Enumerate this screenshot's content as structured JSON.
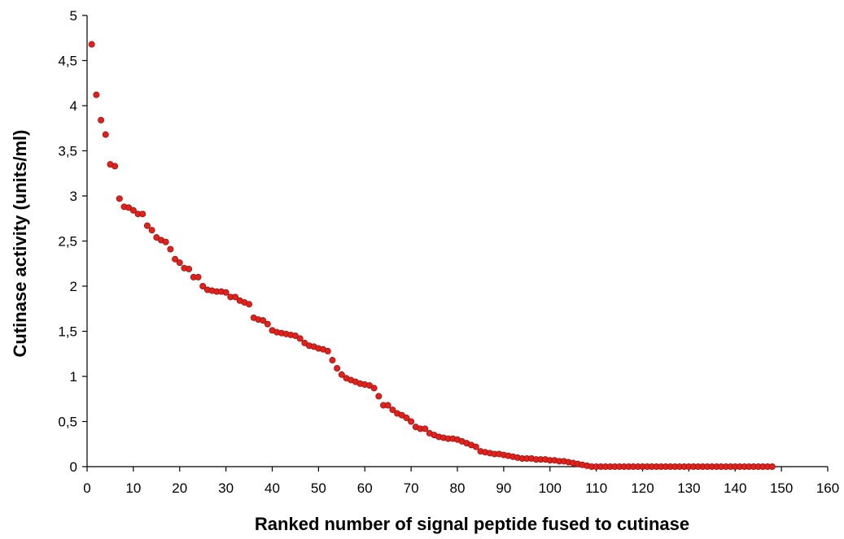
{
  "chart_data": {
    "type": "scatter",
    "title": "",
    "xlabel": "Ranked number of signal peptide fused to cutinase",
    "ylabel": "Cutinase activity (units/ml)",
    "xlim": [
      0,
      160
    ],
    "ylim": [
      0,
      5
    ],
    "x_ticks": [
      "0",
      "10",
      "20",
      "30",
      "40",
      "50",
      "60",
      "70",
      "80",
      "90",
      "100",
      "110",
      "120",
      "130",
      "140",
      "150",
      "160"
    ],
    "y_ticks": [
      "0",
      "0,5",
      "1",
      "1,5",
      "2",
      "2,5",
      "3",
      "3,5",
      "4",
      "4,5",
      "5"
    ],
    "grid": false,
    "legend": "none",
    "marker_color": "#e0221c",
    "marker_edge_color": "#a01010",
    "series": [
      {
        "x": [
          1,
          2,
          3,
          4,
          5,
          6,
          7,
          8,
          9,
          10,
          11,
          12,
          13,
          14,
          15,
          16,
          17,
          18,
          19,
          20,
          21,
          22,
          23,
          24,
          25,
          26,
          27,
          28,
          29,
          30,
          31,
          32,
          33,
          34,
          35,
          36,
          37,
          38,
          39,
          40,
          41,
          42,
          43,
          44,
          45,
          46,
          47,
          48,
          49,
          50,
          51,
          52,
          53,
          54,
          55,
          56,
          57,
          58,
          59,
          60,
          61,
          62,
          63,
          64,
          65,
          66,
          67,
          68,
          69,
          70,
          71,
          72,
          73,
          74,
          75,
          76,
          77,
          78,
          79,
          80,
          81,
          82,
          83,
          84,
          85,
          86,
          87,
          88,
          89,
          90,
          91,
          92,
          93,
          94,
          95,
          96,
          97,
          98,
          99,
          100,
          101,
          102,
          103,
          104,
          105,
          106,
          107,
          108,
          109,
          110,
          111,
          112,
          113,
          114,
          115,
          116,
          117,
          118,
          119,
          120,
          121,
          122,
          123,
          124,
          125,
          126,
          127,
          128,
          129,
          130,
          131,
          132,
          133,
          134,
          135,
          136,
          137,
          138,
          139,
          140,
          141,
          142,
          143,
          144,
          145,
          146,
          147,
          148
        ],
        "y": [
          4.68,
          4.12,
          3.84,
          3.68,
          3.35,
          3.33,
          2.97,
          2.88,
          2.87,
          2.84,
          2.8,
          2.8,
          2.67,
          2.62,
          2.54,
          2.51,
          2.49,
          2.41,
          2.3,
          2.26,
          2.2,
          2.19,
          2.1,
          2.1,
          2.0,
          1.96,
          1.95,
          1.94,
          1.94,
          1.93,
          1.88,
          1.88,
          1.84,
          1.82,
          1.8,
          1.65,
          1.63,
          1.62,
          1.58,
          1.51,
          1.49,
          1.48,
          1.47,
          1.46,
          1.45,
          1.42,
          1.37,
          1.34,
          1.33,
          1.31,
          1.3,
          1.28,
          1.18,
          1.09,
          1.02,
          0.98,
          0.96,
          0.94,
          0.92,
          0.91,
          0.9,
          0.87,
          0.78,
          0.68,
          0.68,
          0.63,
          0.59,
          0.57,
          0.54,
          0.5,
          0.44,
          0.42,
          0.42,
          0.37,
          0.35,
          0.33,
          0.32,
          0.31,
          0.31,
          0.3,
          0.28,
          0.26,
          0.24,
          0.22,
          0.17,
          0.16,
          0.15,
          0.14,
          0.14,
          0.13,
          0.12,
          0.11,
          0.1,
          0.09,
          0.09,
          0.09,
          0.08,
          0.08,
          0.08,
          0.07,
          0.07,
          0.06,
          0.06,
          0.05,
          0.04,
          0.03,
          0.02,
          0.01,
          0.0,
          0.0,
          0.0,
          0.0,
          0.0,
          0.0,
          0.0,
          0.0,
          0.0,
          0.0,
          0.0,
          0.0,
          0.0,
          0.0,
          0.0,
          0.0,
          0.0,
          0.0,
          0.0,
          0.0,
          0.0,
          0.0,
          0.0,
          0.0,
          0.0,
          0.0,
          0.0,
          0.0,
          0.0,
          0.0,
          0.0,
          0.0,
          0.0,
          0.0,
          0.0,
          0.0,
          0.0,
          0.0,
          0.0,
          0.0
        ]
      }
    ]
  }
}
